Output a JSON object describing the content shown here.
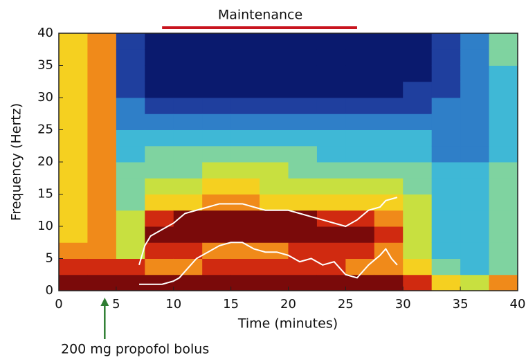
{
  "chart_data": {
    "type": "spectrogram",
    "title": "Maintenance",
    "title_bar": {
      "xrange": [
        9,
        26
      ],
      "color": "#c8141e"
    },
    "xlabel": "Time (minutes)",
    "ylabel": "Frequency (Hertz)",
    "xlim": [
      0,
      40
    ],
    "ylim": [
      0,
      40
    ],
    "xticks": [
      0,
      5,
      10,
      15,
      20,
      25,
      30,
      35,
      40
    ],
    "yticks": [
      0,
      5,
      10,
      15,
      20,
      25,
      30,
      35,
      40
    ],
    "annotation": {
      "text": "200 mg propofol bolus",
      "x": 4,
      "color": "#2e7d32"
    },
    "colormap": [
      "#0a1a6e",
      "#1f3f9e",
      "#2f7fc8",
      "#3fb8d6",
      "#7fd3a0",
      "#c8e040",
      "#f5d020",
      "#f08a1a",
      "#d02a10",
      "#7a0a0a"
    ],
    "x_bins": [
      0,
      2.5,
      5,
      7.5,
      10,
      12.5,
      15,
      17.5,
      20,
      22.5,
      25,
      27.5,
      30,
      32.5,
      35,
      37.5,
      40
    ],
    "y_bins": [
      0,
      2.5,
      5,
      7.5,
      10,
      12.5,
      15,
      17.5,
      20,
      22.5,
      25,
      27.5,
      30,
      32.5,
      35,
      37.5,
      40
    ],
    "z": [
      [
        9,
        8,
        7,
        6,
        6,
        6,
        6,
        6,
        6,
        6,
        6,
        6,
        6,
        6,
        6,
        6
      ],
      [
        9,
        8,
        7,
        7,
        7,
        7,
        7,
        7,
        7,
        7,
        7,
        7,
        7,
        7,
        7,
        7
      ],
      [
        9,
        8,
        5,
        5,
        5,
        4,
        4,
        4,
        3,
        3,
        2,
        2,
        1,
        1,
        1,
        1
      ],
      [
        9,
        7,
        8,
        9,
        8,
        6,
        5,
        4,
        4,
        3,
        2,
        1,
        0,
        0,
        0,
        0
      ],
      [
        9,
        7,
        8,
        9,
        9,
        6,
        5,
        4,
        4,
        3,
        2,
        1,
        0,
        0,
        0,
        0
      ],
      [
        9,
        8,
        7,
        9,
        9,
        7,
        6,
        5,
        4,
        3,
        2,
        1,
        0,
        0,
        0,
        0
      ],
      [
        9,
        8,
        7,
        9,
        9,
        7,
        6,
        5,
        4,
        3,
        2,
        1,
        0,
        0,
        0,
        0
      ],
      [
        9,
        8,
        7,
        9,
        9,
        6,
        5,
        5,
        4,
        3,
        2,
        1,
        0,
        0,
        0,
        0
      ],
      [
        9,
        8,
        8,
        9,
        9,
        6,
        5,
        4,
        4,
        3,
        2,
        1,
        0,
        0,
        0,
        0
      ],
      [
        9,
        8,
        8,
        9,
        8,
        6,
        5,
        4,
        3,
        3,
        2,
        1,
        0,
        0,
        0,
        0
      ],
      [
        9,
        7,
        8,
        9,
        8,
        6,
        5,
        4,
        3,
        3,
        2,
        1,
        0,
        0,
        0,
        0
      ],
      [
        9,
        7,
        7,
        8,
        7,
        6,
        5,
        4,
        3,
        3,
        2,
        1,
        0,
        0,
        0,
        0
      ],
      [
        8,
        6,
        5,
        5,
        5,
        5,
        4,
        4,
        3,
        3,
        2,
        1,
        1,
        0,
        0,
        0
      ],
      [
        6,
        4,
        3,
        3,
        3,
        3,
        3,
        3,
        2,
        2,
        2,
        2,
        1,
        1,
        1,
        1
      ],
      [
        5,
        3,
        3,
        3,
        3,
        3,
        3,
        3,
        2,
        2,
        2,
        2,
        2,
        2,
        2,
        2
      ],
      [
        7,
        4,
        4,
        4,
        4,
        4,
        4,
        4,
        3,
        3,
        3,
        3,
        3,
        3,
        4,
        4
      ]
    ],
    "series": [
      {
        "color": "#ffffff",
        "x": [
          7,
          7.5,
          8,
          9,
          10,
          11,
          12,
          13,
          14,
          15,
          16,
          17,
          18,
          19,
          20,
          21,
          22,
          23,
          24,
          25,
          26,
          27,
          28,
          28.5,
          29.5
        ],
        "values": [
          4,
          7,
          8.5,
          9.5,
          10.5,
          12,
          12.5,
          13,
          13.5,
          13.5,
          13.5,
          13,
          12.5,
          12.5,
          12.5,
          12,
          11.5,
          11,
          10.5,
          10,
          11,
          12.5,
          13,
          14,
          14.5
        ]
      },
      {
        "color": "#ffffff",
        "x": [
          7,
          8,
          9,
          10,
          10.5,
          11,
          12,
          13,
          14,
          15,
          16,
          17,
          18,
          19,
          20,
          21,
          22,
          23,
          24,
          25,
          26,
          27,
          28,
          28.5,
          29,
          29.5
        ],
        "values": [
          1,
          1,
          1,
          1.5,
          2,
          3,
          5,
          6,
          7,
          7.5,
          7.5,
          6.5,
          6,
          6,
          5.5,
          4.5,
          5,
          4,
          4.5,
          2.5,
          2,
          4,
          5.5,
          6.5,
          5,
          4
        ]
      }
    ]
  }
}
